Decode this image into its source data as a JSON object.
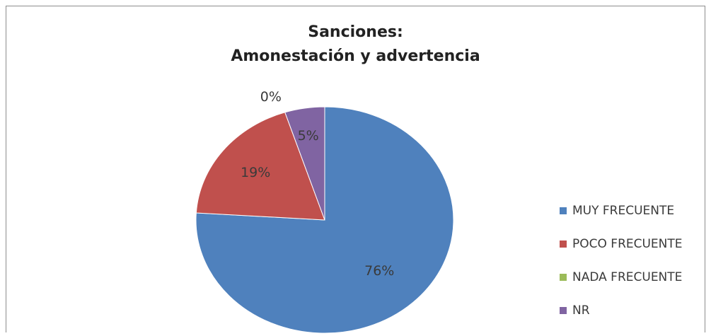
{
  "chart_data": {
    "type": "pie",
    "title_lines": [
      "Sanciones:",
      "Amonestación y advertencia"
    ],
    "categories": [
      "MUY FRECUENTE",
      "POCO FRECUENTE",
      "NADA FRECUENTE",
      "NR"
    ],
    "values": [
      76,
      19,
      0,
      5
    ],
    "data_labels": [
      "76%",
      "19%",
      "0%",
      "5%"
    ],
    "colors": [
      "#4f81bd",
      "#c0504d",
      "#9bbb59",
      "#8064a2"
    ],
    "legend_position": "right"
  }
}
